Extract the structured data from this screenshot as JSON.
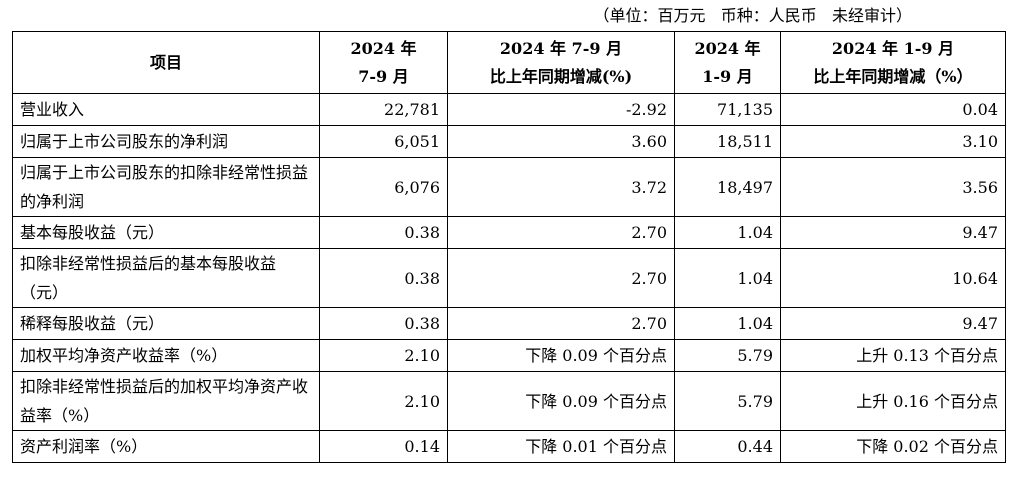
{
  "unit_note": "（单位：百万元   币种：人民币   未经审计）",
  "headers": {
    "item": "项目",
    "col1_line1": "2024 年",
    "col1_line2": "7-9 月",
    "col2_line1": "2024 年 7-9 月",
    "col2_line2": "比上年同期增减(%)",
    "col3_line1": "2024 年",
    "col3_line2": "1-9 月",
    "col4_line1": "2024 年 1-9 月",
    "col4_line2": "比上年同期增减（%）"
  },
  "rows": [
    {
      "item": "营业收入",
      "q3": "22,781",
      "q3_change": "-2.92",
      "ytd": "71,135",
      "ytd_change": "0.04"
    },
    {
      "item": "归属于上市公司股东的净利润",
      "q3": "6,051",
      "q3_change": "3.60",
      "ytd": "18,511",
      "ytd_change": "3.10"
    },
    {
      "item": "归属于上市公司股东的扣除非经常性损益的净利润",
      "q3": "6,076",
      "q3_change": "3.72",
      "ytd": "18,497",
      "ytd_change": "3.56"
    },
    {
      "item": "基本每股收益（元）",
      "q3": "0.38",
      "q3_change": "2.70",
      "ytd": "1.04",
      "ytd_change": "9.47"
    },
    {
      "item": "扣除非经常性损益后的基本每股收益（元）",
      "q3": "0.38",
      "q3_change": "2.70",
      "ytd": "1.04",
      "ytd_change": "10.64"
    },
    {
      "item": "稀释每股收益（元）",
      "q3": "0.38",
      "q3_change": "2.70",
      "ytd": "1.04",
      "ytd_change": "9.47"
    },
    {
      "item": "加权平均净资产收益率（%）",
      "q3": "2.10",
      "q3_change": "下降 0.09 个百分点",
      "ytd": "5.79",
      "ytd_change": "上升 0.13 个百分点"
    },
    {
      "item": "扣除非经常性损益后的加权平均净资产收益率（%）",
      "q3": "2.10",
      "q3_change": "下降 0.09 个百分点",
      "ytd": "5.79",
      "ytd_change": "上升 0.16 个百分点"
    },
    {
      "item": "资产利润率（%）",
      "q3": "0.14",
      "q3_change": "下降 0.01 个百分点",
      "ytd": "0.44",
      "ytd_change": "下降 0.02 个百分点"
    }
  ]
}
